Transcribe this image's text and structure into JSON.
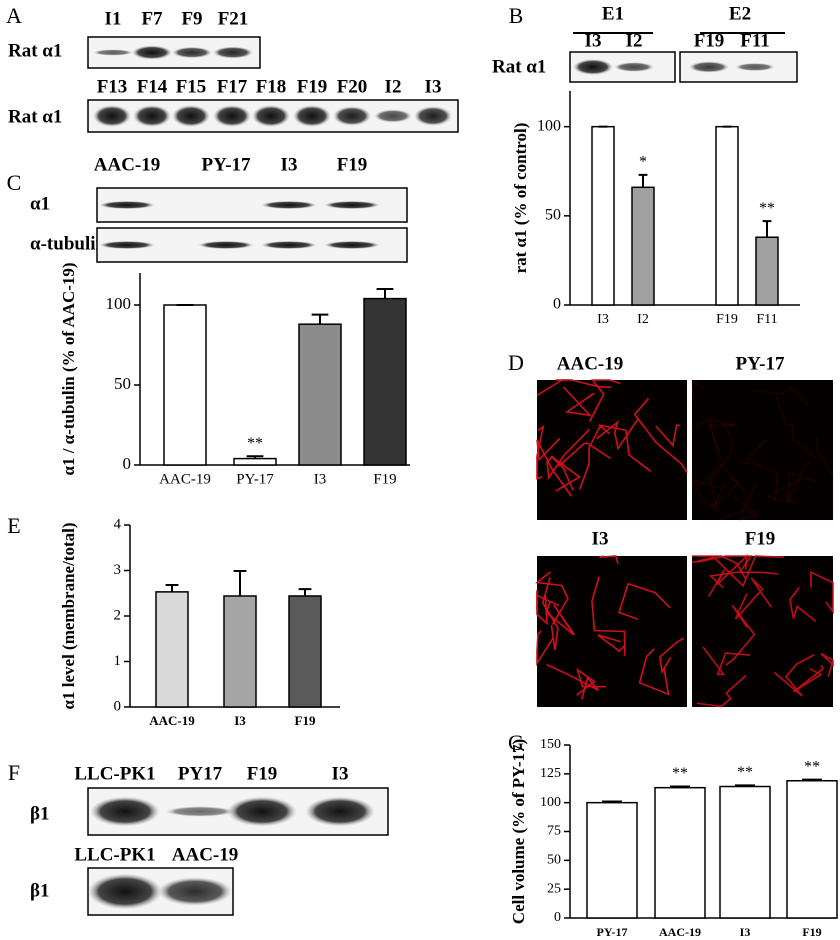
{
  "panel_labels": [
    "A",
    "B",
    "C",
    "D",
    "E",
    "F",
    "G"
  ],
  "blots": {
    "A": {
      "rows": [
        {
          "label": "Rat α1",
          "lanes": [
            "I1",
            "F7",
            "F9",
            "F21"
          ]
        },
        {
          "label": "Rat α1",
          "lanes": [
            "F13",
            "F14",
            "F15",
            "F17",
            "F18",
            "F19",
            "F20",
            "I2",
            "I3"
          ]
        }
      ]
    },
    "B": {
      "label": "Rat α1",
      "groups": [
        {
          "name": "E1",
          "lanes": [
            "I3",
            "I2"
          ]
        },
        {
          "name": "E2",
          "lanes": [
            "F19",
            "F11"
          ]
        }
      ]
    },
    "C": {
      "lanes": [
        "AAC-19",
        "PY-17",
        "I3",
        "F19"
      ],
      "rows": [
        "α1",
        "α-tubulin"
      ]
    },
    "F": {
      "rows": [
        {
          "label": "β1",
          "lanes": [
            "LLC-PK1",
            "PY17",
            "F19",
            "I3"
          ]
        },
        {
          "label": "β1",
          "lanes": [
            "LLC-PK1",
            "AAC-19"
          ]
        }
      ]
    }
  },
  "images_D": {
    "labels": [
      "AAC-19",
      "PY-17",
      "I3",
      "F19"
    ]
  },
  "chart_data": [
    {
      "type": "bar",
      "ylabel": "rat α1   (% of control)",
      "categories": [
        "I3",
        "I2",
        "F19",
        "F11"
      ],
      "values": [
        100,
        66,
        100,
        38
      ],
      "errors": [
        0,
        7,
        0,
        9
      ],
      "colors": [
        "#ffffff",
        "#a0a0a0",
        "#ffffff",
        "#a0a0a0"
      ],
      "annotations": [
        null,
        "*",
        null,
        "**"
      ],
      "ylim": [
        0,
        120
      ],
      "yticks": [
        0,
        50,
        100
      ]
    },
    {
      "type": "bar",
      "ylabel": "α1 / α-tubulin (% of AAC-19)",
      "categories": [
        "AAC-19",
        "PY-17",
        "I3",
        "F19"
      ],
      "values": [
        100,
        4,
        88,
        104
      ],
      "errors": [
        0,
        1.5,
        6,
        6
      ],
      "colors": [
        "#ffffff",
        "#ffffff",
        "#8c8c8c",
        "#333333"
      ],
      "annotations": [
        null,
        "**",
        null,
        null
      ],
      "ylim": [
        0,
        120
      ],
      "yticks": [
        0,
        50,
        100
      ]
    },
    {
      "type": "bar",
      "ylabel": "α1 level (membrane/total)",
      "categories": [
        "AAC-19",
        "I3",
        "F19"
      ],
      "values": [
        2.53,
        2.44,
        2.44
      ],
      "errors": [
        0.15,
        0.55,
        0.15
      ],
      "colors": [
        "#d9d9d9",
        "#a6a6a6",
        "#5a5a5a"
      ],
      "ylim": [
        0,
        4
      ],
      "yticks": [
        0,
        1,
        2,
        3,
        4
      ]
    },
    {
      "type": "bar",
      "ylabel": "Cell volume (% of PY-17)",
      "categories": [
        "PY-17",
        "AAC-19",
        "I3",
        "F19"
      ],
      "values": [
        100,
        113,
        114,
        119
      ],
      "errors": [
        1,
        1,
        1,
        1
      ],
      "colors": [
        "#ffffff",
        "#ffffff",
        "#ffffff",
        "#ffffff"
      ],
      "annotations": [
        null,
        "**",
        "**",
        "**"
      ],
      "ylim": [
        0,
        150
      ],
      "yticks": [
        0,
        25,
        50,
        75,
        100,
        125,
        150
      ]
    }
  ]
}
